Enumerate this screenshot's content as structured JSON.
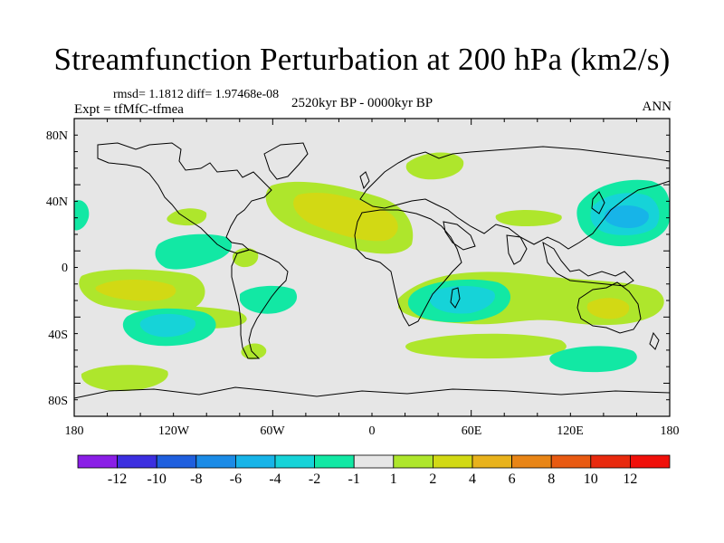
{
  "title": "Streamfunction Perturbation at 200 hPa (km2/s)",
  "stats_line": "rmsd= 1.1812 diff= 1.97468e-08",
  "expt_line": "Expt = tfMfC-tfmea",
  "period_line": "2520kyr BP - 0000kyr BP",
  "season": "ANN",
  "lat_ticks": [
    "80N",
    "40N",
    "0",
    "40S",
    "80S"
  ],
  "lon_ticks": [
    "180",
    "120W",
    "60W",
    "0",
    "60E",
    "120E",
    "180"
  ],
  "colorbar": {
    "labels": [
      "-12",
      "-10",
      "-8",
      "-6",
      "-4",
      "-2",
      "-1",
      "1",
      "2",
      "4",
      "6",
      "8",
      "10",
      "12"
    ],
    "colors": [
      "#8a1ee6",
      "#3c2fe0",
      "#1f5fde",
      "#1b8be6",
      "#17b4e8",
      "#16d3d8",
      "#12e8a4",
      "#e6e6e6",
      "#aee62c",
      "#d2d914",
      "#e8b21c",
      "#e88516",
      "#e85a12",
      "#e82a0e",
      "#f0100a"
    ]
  },
  "colors": {
    "background": "#e6e6e6",
    "level_2": "#aee62c",
    "level_4": "#d2d914",
    "level_neg1": "#12e8a4",
    "level_neg2": "#16d3d8",
    "level_neg4": "#17b4e8"
  }
}
